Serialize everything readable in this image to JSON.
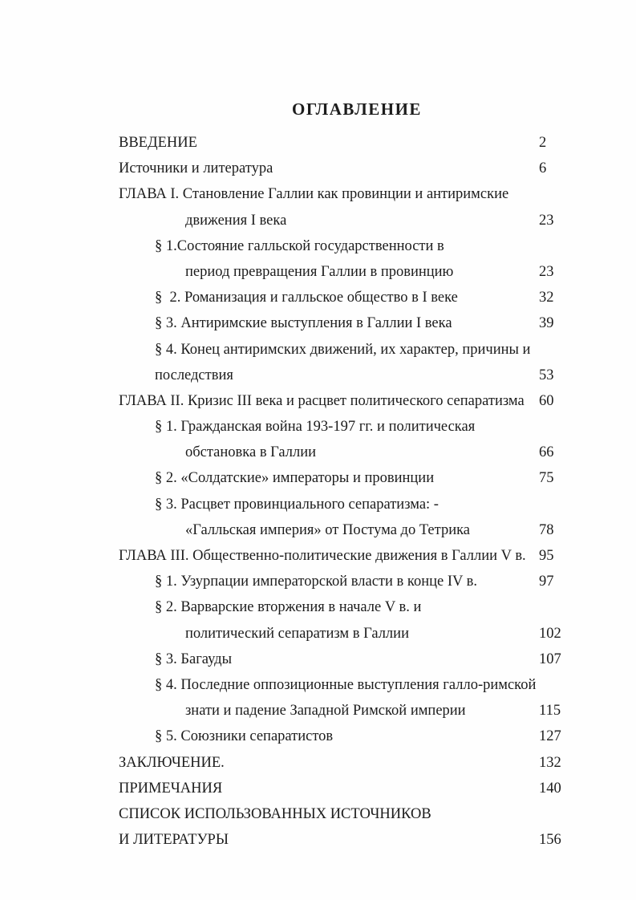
{
  "title": "ОГЛАВЛЕНИЕ",
  "colors": {
    "background": "#fdfdfd",
    "text": "#1c1c1c"
  },
  "toc": {
    "entries": [
      {
        "text": "ВВЕДЕНИЕ",
        "page": "2",
        "indent": 0
      },
      {
        "text": "Источники и литература",
        "page": "6",
        "indent": 0
      },
      {
        "text": "ГЛАВА I. Становление Галлии как провинции и антиримские",
        "page": "",
        "indent": 0
      },
      {
        "text": "движения I века",
        "page": "23",
        "indent": 2
      },
      {
        "text": "§ 1.Состояние галльской государственности в",
        "page": "",
        "indent": 1
      },
      {
        "text": "период превращения Галлии в провинцию",
        "page": "23",
        "indent": 2
      },
      {
        "text": "§  2. Романизация и галльское общество в I веке",
        "page": "32",
        "indent": 1
      },
      {
        "text": "§ 3. Антиримские выступления в Галлии I века",
        "page": "39",
        "indent": 1
      },
      {
        "text": "§ 4. Конец антиримских движений, их характер, причины и",
        "page": "",
        "indent": 1
      },
      {
        "text": "последствия",
        "page": "53",
        "indent": 1
      },
      {
        "text": "ГЛАВА II. Кризис III века и расцвет политического сепаратизма",
        "page": "60",
        "indent": 0
      },
      {
        "text": "§ 1. Гражданская война 193-197 гг. и политическая",
        "page": "",
        "indent": 1
      },
      {
        "text": "обстановка в Галлии",
        "page": "66",
        "indent": 2
      },
      {
        "text": "§ 2. «Солдатские» императоры и провинции",
        "page": "75",
        "indent": 1
      },
      {
        "text": "§ 3. Расцвет провинциального сепаратизма: -",
        "page": "",
        "indent": 1
      },
      {
        "text": "«Галльская империя» от Постума до Тетрика",
        "page": "78",
        "indent": 2
      },
      {
        "text": "ГЛАВА III. Общественно-политические движения в Галлии V в.",
        "page": "95",
        "indent": 0
      },
      {
        "text": "§ 1. Узурпации императорской власти в конце IV в.",
        "page": "97",
        "indent": 1
      },
      {
        "text": "§ 2. Варварские вторжения в начале V в. и",
        "page": "",
        "indent": 1
      },
      {
        "text": "политический сепаратизм в Галлии",
        "page": "102",
        "indent": 2
      },
      {
        "text": "§ 3. Багауды",
        "page": "107",
        "indent": 1
      },
      {
        "text": "§ 4. Последние оппозиционные выступления галло-римской",
        "page": "",
        "indent": 1
      },
      {
        "text": "знати и падение Западной Римской империи",
        "page": "115",
        "indent": 2
      },
      {
        "text": "§ 5. Союзники сепаратистов",
        "page": "127",
        "indent": 1
      },
      {
        "text": "ЗАКЛЮЧЕНИЕ.",
        "page": "132",
        "indent": 0
      },
      {
        "text": "ПРИМЕЧАНИЯ",
        "page": "140",
        "indent": 0
      },
      {
        "text": "СПИСОК ИСПОЛЬЗОВАННЫХ ИСТОЧНИКОВ",
        "page": "",
        "indent": 0
      },
      {
        "text": "И ЛИТЕРАТУРЫ",
        "page": "156",
        "indent": 0
      }
    ]
  }
}
